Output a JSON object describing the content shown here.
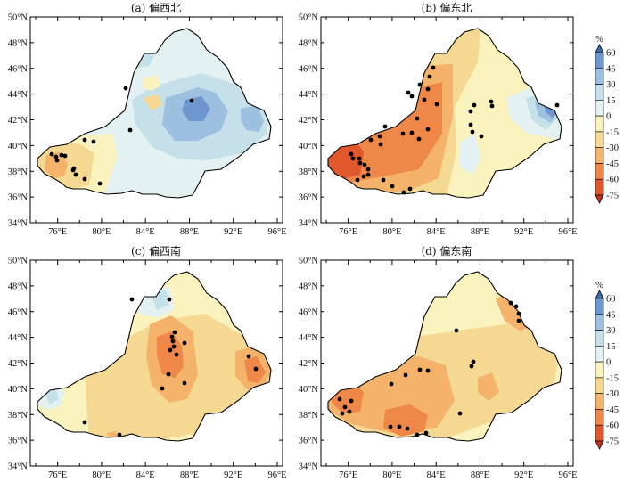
{
  "figure": {
    "panels": [
      {
        "id": "a",
        "title": "(a) 偏西北"
      },
      {
        "id": "b",
        "title": "(b) 偏东北"
      },
      {
        "id": "c",
        "title": "(c) 偏西南"
      },
      {
        "id": "d",
        "title": "(d) 偏东南"
      }
    ],
    "lat_labels": [
      "50°N",
      "48°N",
      "46°N",
      "44°N",
      "42°N",
      "40°N",
      "38°N",
      "36°N",
      "34°N"
    ],
    "lon_labels": [
      "76°E",
      "80°E",
      "84°E",
      "88°E",
      "92°E",
      "96°E"
    ],
    "colorbar": {
      "unit": "%",
      "labels": [
        "60",
        "45",
        "30",
        "15",
        "0",
        "-15",
        "-30",
        "-45",
        "-60",
        "-75"
      ],
      "colors": [
        "#3a6bb5",
        "#6e97cf",
        "#9dbfe0",
        "#c6e0ea",
        "#e3f1f2",
        "#fbf3be",
        "#f5d993",
        "#f4b26a",
        "#ee8748",
        "#e0582c",
        "#c9321a"
      ]
    },
    "palette": {
      "outline": "#000000",
      "station": "#000000"
    }
  }
}
